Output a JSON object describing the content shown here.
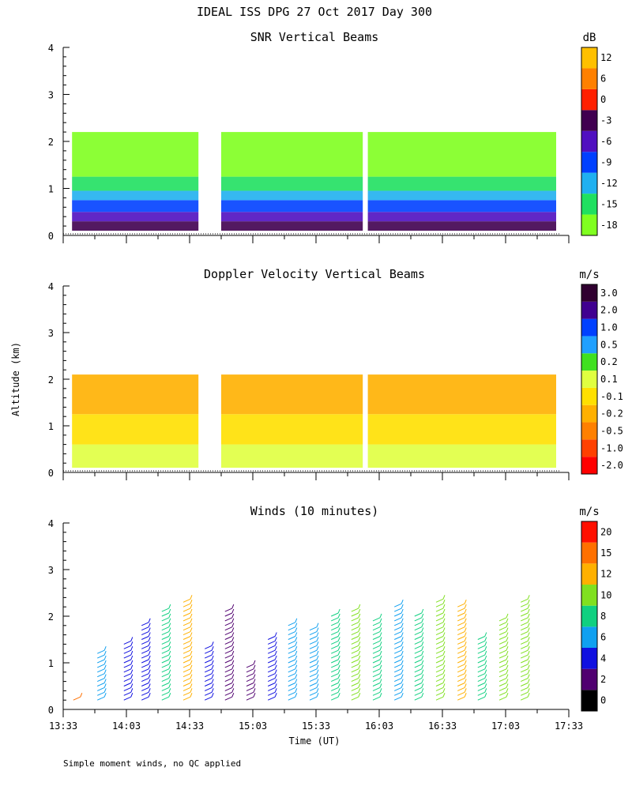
{
  "page": {
    "title": "IDEAL ISS DPG  27 Oct 2017 Day 300",
    "ylabel": "Altitude (km)",
    "xlabel": "Time (UT)",
    "footnote": "Simple moment winds, no QC applied"
  },
  "chart_data": [
    {
      "type": "heatmap",
      "title": "SNR Vertical Beams",
      "units": "dB",
      "xlim": [
        13.55,
        17.55
      ],
      "ylim": [
        0,
        4
      ],
      "y_ticks": [
        "0",
        "1",
        "2",
        "3",
        "4"
      ],
      "colorbar": {
        "labels": [
          "-18",
          "-15",
          "-12",
          "-9",
          "-6",
          "-3",
          "0",
          "6",
          "12"
        ],
        "colors": [
          "#80ff20",
          "#20e060",
          "#20b0f0",
          "#0040ff",
          "#5010c0",
          "#400050",
          "#ff2000",
          "#ff8000",
          "#ffc000"
        ]
      },
      "layers": [
        {
          "altitude_km": [
            0.1,
            0.3
          ],
          "level": "-3"
        },
        {
          "altitude_km": [
            0.3,
            0.5
          ],
          "level": "-6"
        },
        {
          "altitude_km": [
            0.5,
            0.75
          ],
          "level": "-9"
        },
        {
          "altitude_km": [
            0.75,
            0.95
          ],
          "level": "-12"
        },
        {
          "altitude_km": [
            0.95,
            1.25
          ],
          "level": "-15"
        },
        {
          "altitude_km": [
            1.25,
            2.2
          ],
          "level": "-18"
        }
      ]
    },
    {
      "type": "heatmap",
      "title": "Doppler Velocity Vertical Beams",
      "units": "m/s",
      "xlim": [
        13.55,
        17.55
      ],
      "ylim": [
        0,
        4
      ],
      "y_ticks": [
        "0",
        "1",
        "2",
        "3",
        "4"
      ],
      "colorbar": {
        "labels": [
          "-2.0",
          "-1.0",
          "-0.5",
          "-0.2",
          "-0.1",
          "0.1",
          "0.2",
          "0.5",
          "1.0",
          "2.0",
          "3.0"
        ],
        "colors": [
          "#ff0000",
          "#ff4000",
          "#ff8000",
          "#ffb000",
          "#ffe000",
          "#e0ff40",
          "#40e020",
          "#20a0ff",
          "#0040ff",
          "#400090",
          "#300030"
        ]
      },
      "layers": [
        {
          "altitude_km": [
            0.1,
            0.6
          ],
          "level": "0.1"
        },
        {
          "altitude_km": [
            0.6,
            1.25
          ],
          "level": "-0.1"
        },
        {
          "altitude_km": [
            1.25,
            2.1
          ],
          "level": "-0.2"
        }
      ]
    },
    {
      "type": "scatter",
      "title": "Winds (10 minutes)",
      "units": "m/s",
      "xlim": [
        13.55,
        17.55
      ],
      "ylim": [
        0,
        4
      ],
      "y_ticks": [
        "0",
        "1",
        "2",
        "3",
        "4"
      ],
      "x_ticks": [
        "13:33",
        "14:03",
        "14:33",
        "15:03",
        "15:33",
        "16:03",
        "16:33",
        "17:03",
        "17:33"
      ],
      "colorbar": {
        "labels": [
          "0",
          "2",
          "4",
          "6",
          "8",
          "10",
          "12",
          "15",
          "20"
        ],
        "colors": [
          "#000000",
          "#500070",
          "#1010e0",
          "#10a0f0",
          "#10d080",
          "#80e020",
          "#ffb000",
          "#ff7000",
          "#ff1000"
        ]
      },
      "profiles": [
        {
          "time_h": 13.63,
          "top_km": 0.3,
          "speed_ms": 16
        },
        {
          "time_h": 13.82,
          "top_km": 1.2,
          "speed_ms": 7
        },
        {
          "time_h": 14.03,
          "top_km": 1.5,
          "speed_ms": 5
        },
        {
          "time_h": 14.17,
          "top_km": 1.9,
          "speed_ms": 4
        },
        {
          "time_h": 14.33,
          "top_km": 2.2,
          "speed_ms": 9
        },
        {
          "time_h": 14.5,
          "top_km": 2.4,
          "speed_ms": 12
        },
        {
          "time_h": 14.67,
          "top_km": 1.3,
          "speed_ms": 4
        },
        {
          "time_h": 14.83,
          "top_km": 2.2,
          "speed_ms": 3
        },
        {
          "time_h": 15.0,
          "top_km": 0.9,
          "speed_ms": 3
        },
        {
          "time_h": 15.17,
          "top_km": 1.6,
          "speed_ms": 5
        },
        {
          "time_h": 15.33,
          "top_km": 1.9,
          "speed_ms": 6
        },
        {
          "time_h": 15.5,
          "top_km": 1.8,
          "speed_ms": 7
        },
        {
          "time_h": 15.67,
          "top_km": 2.1,
          "speed_ms": 9
        },
        {
          "time_h": 15.83,
          "top_km": 2.2,
          "speed_ms": 10
        },
        {
          "time_h": 16.0,
          "top_km": 2.0,
          "speed_ms": 8
        },
        {
          "time_h": 16.17,
          "top_km": 2.3,
          "speed_ms": 7
        },
        {
          "time_h": 16.33,
          "top_km": 2.1,
          "speed_ms": 9
        },
        {
          "time_h": 16.5,
          "top_km": 2.4,
          "speed_ms": 11
        },
        {
          "time_h": 16.67,
          "top_km": 2.3,
          "speed_ms": 13
        },
        {
          "time_h": 16.83,
          "top_km": 1.6,
          "speed_ms": 9
        },
        {
          "time_h": 17.0,
          "top_km": 2.0,
          "speed_ms": 11
        },
        {
          "time_h": 17.17,
          "top_km": 2.4,
          "speed_ms": 10
        }
      ]
    }
  ]
}
